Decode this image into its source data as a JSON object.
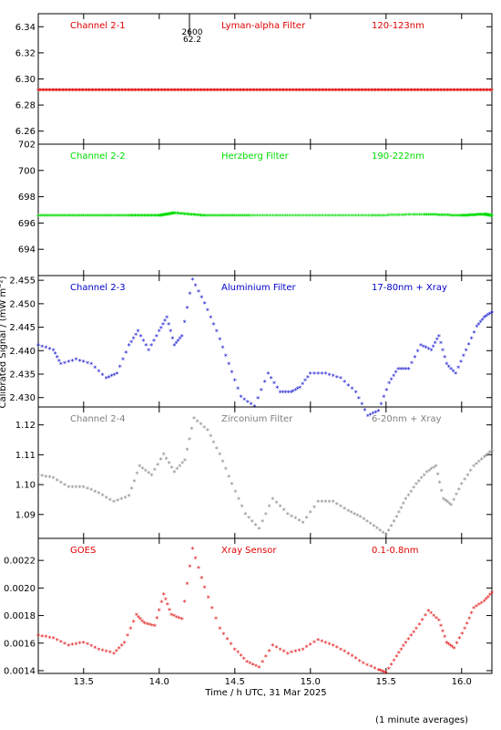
{
  "figure": {
    "xlabel": "Time / h UTC, 31 Mar 2025",
    "ylabel": "Calibrated Signal / (mW m⁻²)",
    "footnote": "(1 minute averages)",
    "marker_text": [
      "2600",
      "62.2"
    ]
  },
  "chart_data": [
    {
      "type": "scatter",
      "channel_label": "Channel 2-1",
      "filter_label": "Lyman-alpha Filter",
      "band_label": "120-123nm",
      "color": "#e00000",
      "xlim": [
        13.2,
        16.2
      ],
      "ylim": [
        6.25,
        6.35
      ],
      "xticks": [
        13.5,
        14.0,
        14.5,
        15.0,
        15.5,
        16.0
      ],
      "yticks": [
        "6.26",
        "6.28",
        "6.30",
        "6.32",
        "6.34"
      ],
      "x": [
        13.2,
        13.4,
        13.6,
        13.8,
        14.0,
        14.2,
        14.4,
        14.6,
        14.8,
        15.0,
        15.2,
        15.4,
        15.6,
        15.8,
        16.0,
        16.2
      ],
      "y": [
        6.291,
        6.291,
        6.291,
        6.291,
        6.291,
        6.291,
        6.291,
        6.291,
        6.291,
        6.291,
        6.291,
        6.291,
        6.291,
        6.291,
        6.291,
        6.291
      ]
    },
    {
      "type": "scatter",
      "channel_label": "Channel 2-2",
      "filter_label": "Herzberg Filter",
      "band_label": "190-222nm",
      "color": "#00dd00",
      "xlim": [
        13.2,
        16.2
      ],
      "ylim": [
        692,
        702
      ],
      "xticks": [
        13.5,
        14.0,
        14.5,
        15.0,
        15.5,
        16.0
      ],
      "yticks": [
        "694",
        "696",
        "698",
        "700",
        "702"
      ],
      "x": [
        13.2,
        13.5,
        13.8,
        14.0,
        14.1,
        14.3,
        14.6,
        15.0,
        15.4,
        15.75,
        16.0,
        16.15,
        16.2
      ],
      "y": [
        696.5,
        696.5,
        696.5,
        696.5,
        696.7,
        696.5,
        696.5,
        696.5,
        696.5,
        696.6,
        696.5,
        696.6,
        696.5
      ]
    },
    {
      "type": "scatter",
      "channel_label": "Channel 2-3",
      "filter_label": "Aluminium Filter",
      "band_label": "17-80nm + Xray",
      "color": "#0000cc",
      "xlim": [
        13.2,
        16.2
      ],
      "ylim": [
        2.428,
        2.456
      ],
      "xticks": [
        13.5,
        14.0,
        14.5,
        15.0,
        15.5,
        16.0
      ],
      "yticks": [
        "2.430",
        "2.435",
        "2.440",
        "2.445",
        "2.450",
        "2.455"
      ],
      "x": [
        13.2,
        13.3,
        13.35,
        13.45,
        13.55,
        13.65,
        13.72,
        13.8,
        13.86,
        13.93,
        14.0,
        14.05,
        14.1,
        14.15,
        14.22,
        14.3,
        14.38,
        14.46,
        14.54,
        14.63,
        14.72,
        14.8,
        14.87,
        14.93,
        15.0,
        15.1,
        15.2,
        15.3,
        15.38,
        15.45,
        15.52,
        15.58,
        15.65,
        15.73,
        15.8,
        15.85,
        15.9,
        15.96,
        16.03,
        16.1,
        16.15,
        16.2
      ],
      "y": [
        2.441,
        2.44,
        2.437,
        2.438,
        2.437,
        2.434,
        2.435,
        2.441,
        2.444,
        2.44,
        2.444,
        2.447,
        2.441,
        2.443,
        2.455,
        2.45,
        2.444,
        2.437,
        2.43,
        2.428,
        2.435,
        2.431,
        2.431,
        2.432,
        2.435,
        2.435,
        2.434,
        2.431,
        2.426,
        2.427,
        2.433,
        2.436,
        2.436,
        2.441,
        2.44,
        2.443,
        2.437,
        2.435,
        2.44,
        2.445,
        2.447,
        2.448
      ]
    },
    {
      "type": "scatter",
      "channel_label": "Channel 2-4",
      "filter_label": "Zirconium Filter",
      "band_label": "6-20nm + Xray",
      "color": "#7f7f7f",
      "xlim": [
        13.2,
        16.2
      ],
      "ylim": [
        1.082,
        1.126
      ],
      "xticks": [
        13.5,
        14.0,
        14.5,
        15.0,
        15.5,
        16.0
      ],
      "yticks": [
        "1.09",
        "1.10",
        "1.11",
        "1.12"
      ],
      "x": [
        13.2,
        13.3,
        13.4,
        13.5,
        13.6,
        13.7,
        13.8,
        13.87,
        13.95,
        14.03,
        14.1,
        14.17,
        14.23,
        14.32,
        14.4,
        14.48,
        14.57,
        14.66,
        14.75,
        14.85,
        14.95,
        15.05,
        15.15,
        15.25,
        15.33,
        15.42,
        15.5,
        15.57,
        15.63,
        15.7,
        15.77,
        15.83,
        15.88,
        15.93,
        16.0,
        16.08,
        16.15,
        16.2
      ],
      "y": [
        1.103,
        1.102,
        1.099,
        1.099,
        1.097,
        1.094,
        1.096,
        1.106,
        1.103,
        1.11,
        1.104,
        1.108,
        1.122,
        1.118,
        1.11,
        1.1,
        1.09,
        1.085,
        1.095,
        1.09,
        1.087,
        1.094,
        1.094,
        1.091,
        1.089,
        1.086,
        1.083,
        1.089,
        1.095,
        1.1,
        1.104,
        1.106,
        1.095,
        1.093,
        1.1,
        1.106,
        1.109,
        1.111
      ]
    },
    {
      "type": "scatter",
      "channel_label": "GOES",
      "filter_label": "Xray Sensor",
      "band_label": "0.1-0.8nm",
      "color": "#e00000",
      "xlim": [
        13.2,
        16.2
      ],
      "ylim": [
        0.00138,
        0.00236
      ],
      "xticks": [
        13.5,
        14.0,
        14.5,
        15.0,
        15.5,
        16.0
      ],
      "xticklabels": [
        "13.5",
        "14.0",
        "14.5",
        "15.0",
        "15.5",
        "16.0"
      ],
      "yticks": [
        "0.0014",
        "0.0016",
        "0.0018",
        "0.0020",
        "0.0022"
      ],
      "x": [
        13.2,
        13.3,
        13.4,
        13.5,
        13.6,
        13.7,
        13.77,
        13.85,
        13.9,
        13.97,
        14.03,
        14.08,
        14.15,
        14.22,
        14.3,
        14.4,
        14.5,
        14.58,
        14.66,
        14.75,
        14.85,
        14.95,
        15.05,
        15.15,
        15.25,
        15.35,
        15.45,
        15.5,
        15.57,
        15.63,
        15.7,
        15.78,
        15.85,
        15.9,
        15.95,
        16.02,
        16.08,
        16.15,
        16.2
      ],
      "y": [
        0.00165,
        0.00163,
        0.00158,
        0.0016,
        0.00155,
        0.00152,
        0.0016,
        0.0018,
        0.00174,
        0.00172,
        0.00195,
        0.0018,
        0.00177,
        0.00228,
        0.002,
        0.0017,
        0.00155,
        0.00146,
        0.00142,
        0.00158,
        0.00152,
        0.00155,
        0.00162,
        0.00158,
        0.00152,
        0.00145,
        0.0014,
        0.00138,
        0.0015,
        0.0016,
        0.0017,
        0.00183,
        0.00176,
        0.0016,
        0.00156,
        0.0017,
        0.00185,
        0.0019,
        0.00196
      ]
    }
  ]
}
